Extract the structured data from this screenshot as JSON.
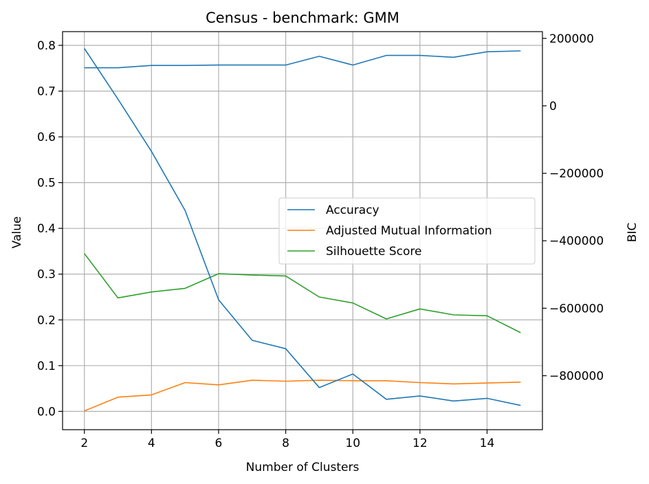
{
  "chart_data": {
    "type": "line",
    "title": "Census - benchmark: GMM",
    "xlabel": "Number of Clusters",
    "ylabel": "Value",
    "y2label": "BIC",
    "x": [
      2,
      3,
      4,
      5,
      6,
      7,
      8,
      9,
      10,
      11,
      12,
      13,
      14,
      15
    ],
    "xlim": [
      1.35,
      15.65
    ],
    "ylim": [
      -0.04,
      0.83
    ],
    "y2lim": [
      -960000,
      220000
    ],
    "xticks": [
      2,
      4,
      6,
      8,
      10,
      12,
      14
    ],
    "yticks": [
      0.0,
      0.1,
      0.2,
      0.3,
      0.4,
      0.5,
      0.6,
      0.7,
      0.8
    ],
    "ytick_labels": [
      "0.0",
      "0.1",
      "0.2",
      "0.3",
      "0.4",
      "0.5",
      "0.6",
      "0.7",
      "0.8"
    ],
    "y2ticks": [
      200000,
      0,
      -200000,
      -400000,
      -600000,
      -800000
    ],
    "y2tick_labels": [
      "200000",
      "0",
      "−200000",
      "−400000",
      "−600000",
      "−800000"
    ],
    "grid": true,
    "legend_position": "center-right",
    "series": [
      {
        "name": "Accuracy",
        "axis": "left",
        "color": "#1f77b4",
        "values": [
          0.751,
          0.751,
          0.756,
          0.756,
          0.757,
          0.757,
          0.757,
          0.776,
          0.757,
          0.778,
          0.778,
          0.774,
          0.786,
          0.788
        ]
      },
      {
        "name": "Adjusted Mutual Information",
        "axis": "left",
        "color": "#ff7f0e",
        "values": [
          0.001,
          0.031,
          0.036,
          0.063,
          0.058,
          0.068,
          0.066,
          0.068,
          0.067,
          0.067,
          0.063,
          0.06,
          0.062,
          0.064
        ]
      },
      {
        "name": "Silhouette Score",
        "axis": "left",
        "color": "#2ca02c",
        "values": [
          0.345,
          0.248,
          0.261,
          0.269,
          0.301,
          0.298,
          0.296,
          0.25,
          0.237,
          0.202,
          0.224,
          0.211,
          0.209,
          0.172
        ]
      },
      {
        "name": "BIC",
        "axis": "right",
        "color": "#1f77b4",
        "in_legend": false,
        "values": [
          170000,
          20000,
          -135000,
          -310000,
          -575000,
          -695000,
          -720000,
          -835000,
          -795000,
          -870000,
          -860000,
          -875000,
          -867000,
          -888000
        ]
      }
    ]
  }
}
